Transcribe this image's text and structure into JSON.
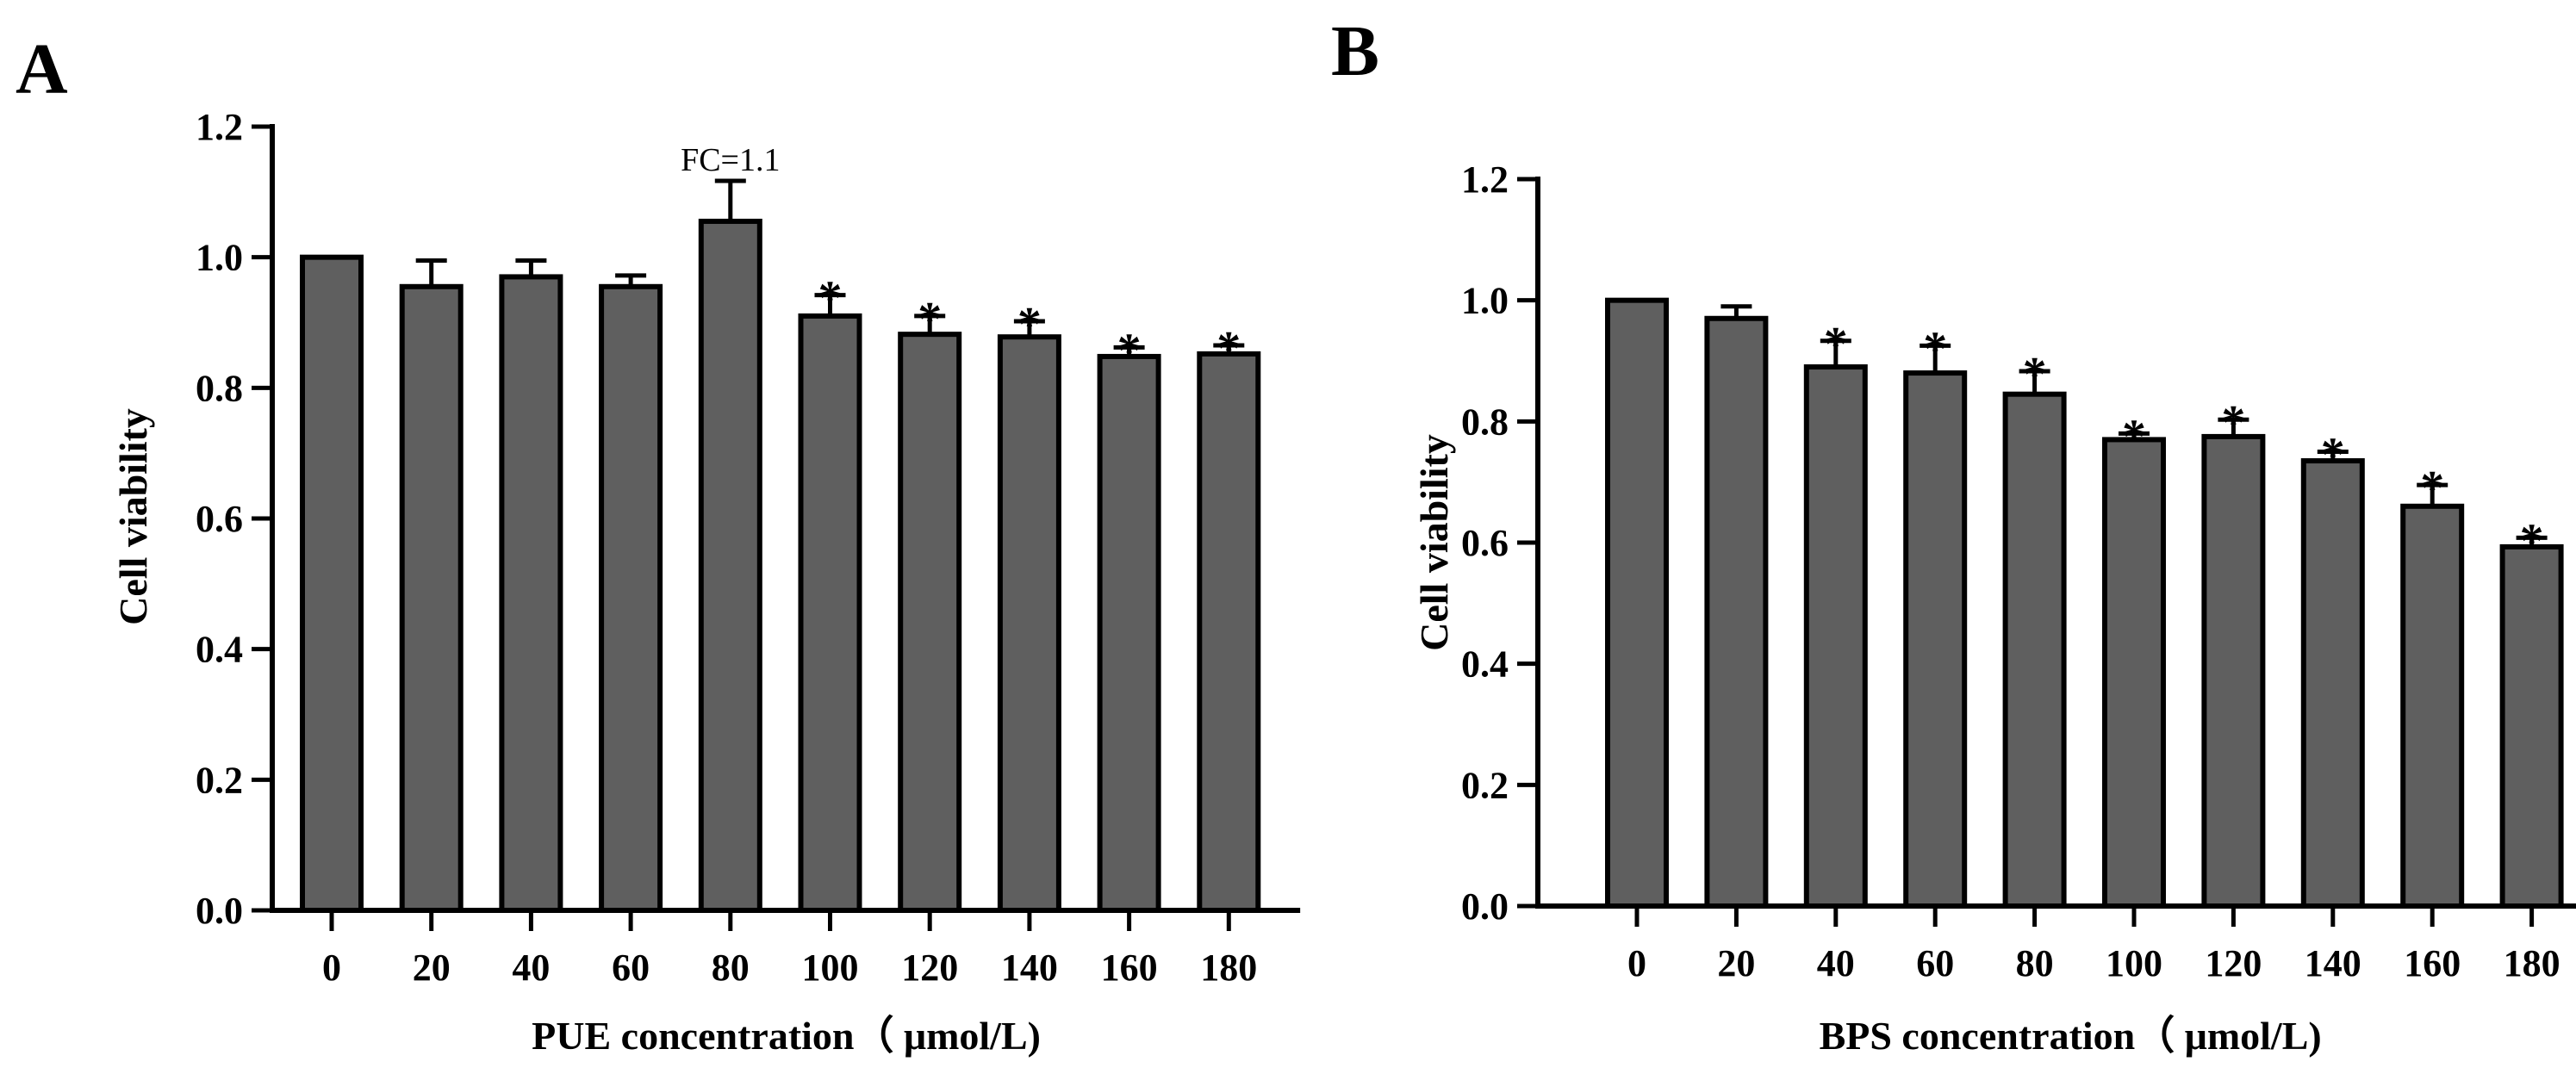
{
  "chart_data": [
    {
      "type": "bar",
      "panel_label": "A",
      "categories": [
        "0",
        "20",
        "40",
        "60",
        "80",
        "100",
        "120",
        "140",
        "160",
        "180"
      ],
      "values": [
        1.0,
        0.955,
        0.97,
        0.955,
        1.055,
        0.91,
        0.882,
        0.878,
        0.848,
        0.852
      ],
      "errors": [
        0.0,
        0.04,
        0.025,
        0.017,
        0.062,
        0.032,
        0.028,
        0.024,
        0.014,
        0.013
      ],
      "significance": [
        "",
        "",
        "",
        "",
        "",
        "*",
        "*",
        "*",
        "*",
        "*"
      ],
      "annotation": {
        "text": "FC=1.1",
        "category": "80"
      },
      "xlabel": "PUE concentration（ μmol/L)",
      "ylabel": "Cell viability",
      "ylim": [
        0,
        1.2
      ],
      "yticks": [
        "0.0",
        "0.2",
        "0.4",
        "0.6",
        "0.8",
        "1.0",
        "1.2"
      ],
      "bar_color": "#5f5f5f",
      "edge_color": "#000000"
    },
    {
      "type": "bar",
      "panel_label": "B",
      "categories": [
        "0",
        "20",
        "40",
        "60",
        "80",
        "100",
        "120",
        "140",
        "160",
        "180"
      ],
      "values": [
        1.0,
        0.97,
        0.89,
        0.88,
        0.845,
        0.77,
        0.775,
        0.735,
        0.66,
        0.593
      ],
      "errors": [
        0.0,
        0.02,
        0.043,
        0.045,
        0.038,
        0.01,
        0.028,
        0.015,
        0.035,
        0.015
      ],
      "significance": [
        "",
        "",
        "*",
        "*",
        "*",
        "*",
        "*",
        "*",
        "*",
        "*"
      ],
      "xlabel": "BPS concentration（ μmol/L)",
      "ylabel": "Cell viability",
      "ylim": [
        0,
        1.2
      ],
      "yticks": [
        "0.0",
        "0.2",
        "0.4",
        "0.6",
        "0.8",
        "1.0",
        "1.2"
      ],
      "bar_color": "#5f5f5f",
      "edge_color": "#000000"
    }
  ]
}
